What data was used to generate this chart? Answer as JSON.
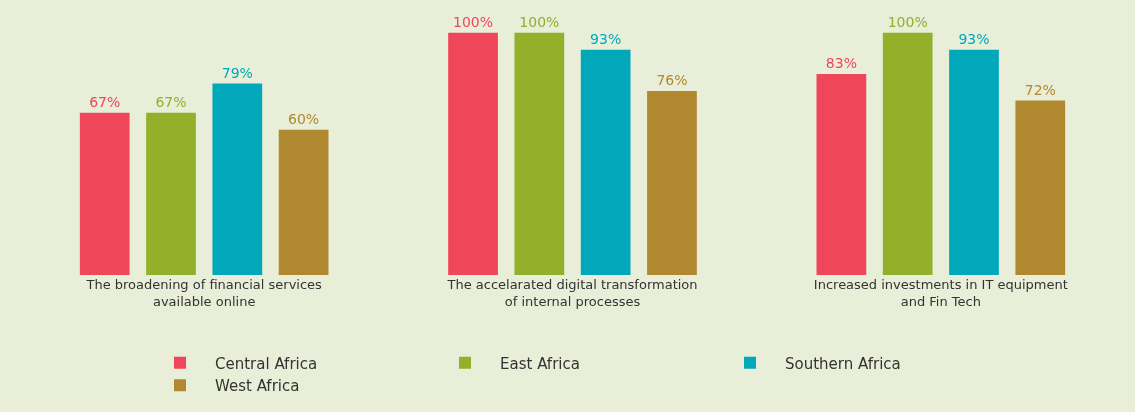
{
  "chart_data": {
    "type": "bar",
    "categories": [
      "The broadening of financial services available online",
      "The accelarated digital transformation of internal processes",
      "Increased investments in IT equipment and Fin Tech"
    ],
    "series": [
      {
        "name": "Central Africa",
        "color": "#ef4659",
        "values": [
          67,
          100,
          83
        ],
        "value_labels": [
          "67%",
          "100%",
          "83%"
        ]
      },
      {
        "name": "East Africa",
        "color": "#92b02a",
        "values": [
          67,
          100,
          100
        ],
        "value_labels": [
          "67%",
          "100%",
          "100%"
        ]
      },
      {
        "name": "Southern Africa",
        "color": "#00a8ba",
        "values": [
          79,
          93,
          93
        ],
        "value_labels": [
          "79%",
          "93%",
          "93%"
        ]
      },
      {
        "name": "West Africa",
        "color": "#b0882f",
        "values": [
          60,
          76,
          72
        ],
        "value_labels": [
          "60%",
          "76%",
          "72%"
        ]
      }
    ],
    "grid": false,
    "legend": "bottom"
  }
}
